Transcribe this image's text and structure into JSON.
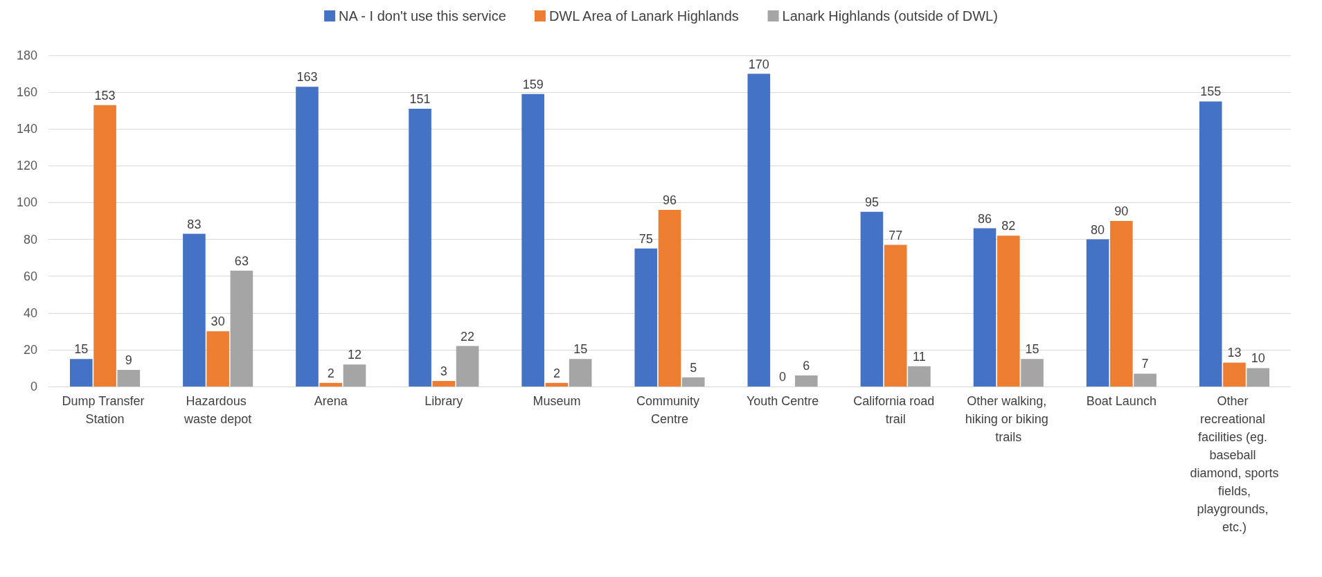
{
  "chart_data": {
    "type": "bar",
    "categories": [
      "Dump Transfer Station",
      "Hazardous waste depot",
      "Arena",
      "Library",
      "Museum",
      "Community Centre",
      "Youth Centre",
      "California road trail",
      "Other walking, hiking or biking trails",
      "Boat Launch",
      "Other recreational facilities (eg. baseball diamond, sports fields, playgrounds, etc.)"
    ],
    "series": [
      {
        "name": "NA - I don't use this service",
        "color": "#4472c4",
        "values": [
          15,
          83,
          163,
          151,
          159,
          75,
          170,
          95,
          86,
          80,
          155
        ]
      },
      {
        "name": "DWL Area of Lanark Highlands",
        "color": "#ed7d31",
        "values": [
          153,
          30,
          2,
          3,
          2,
          96,
          0,
          77,
          82,
          90,
          13
        ]
      },
      {
        "name": "Lanark Highlands (outside of DWL)",
        "color": "#a5a5a5",
        "values": [
          9,
          63,
          12,
          22,
          15,
          5,
          6,
          11,
          15,
          7,
          10
        ]
      }
    ],
    "ylim": [
      0,
      180
    ],
    "yticks": [
      0,
      20,
      40,
      60,
      80,
      100,
      120,
      140,
      160,
      180
    ],
    "grid": "y",
    "legend": "top",
    "data_labels": true
  }
}
